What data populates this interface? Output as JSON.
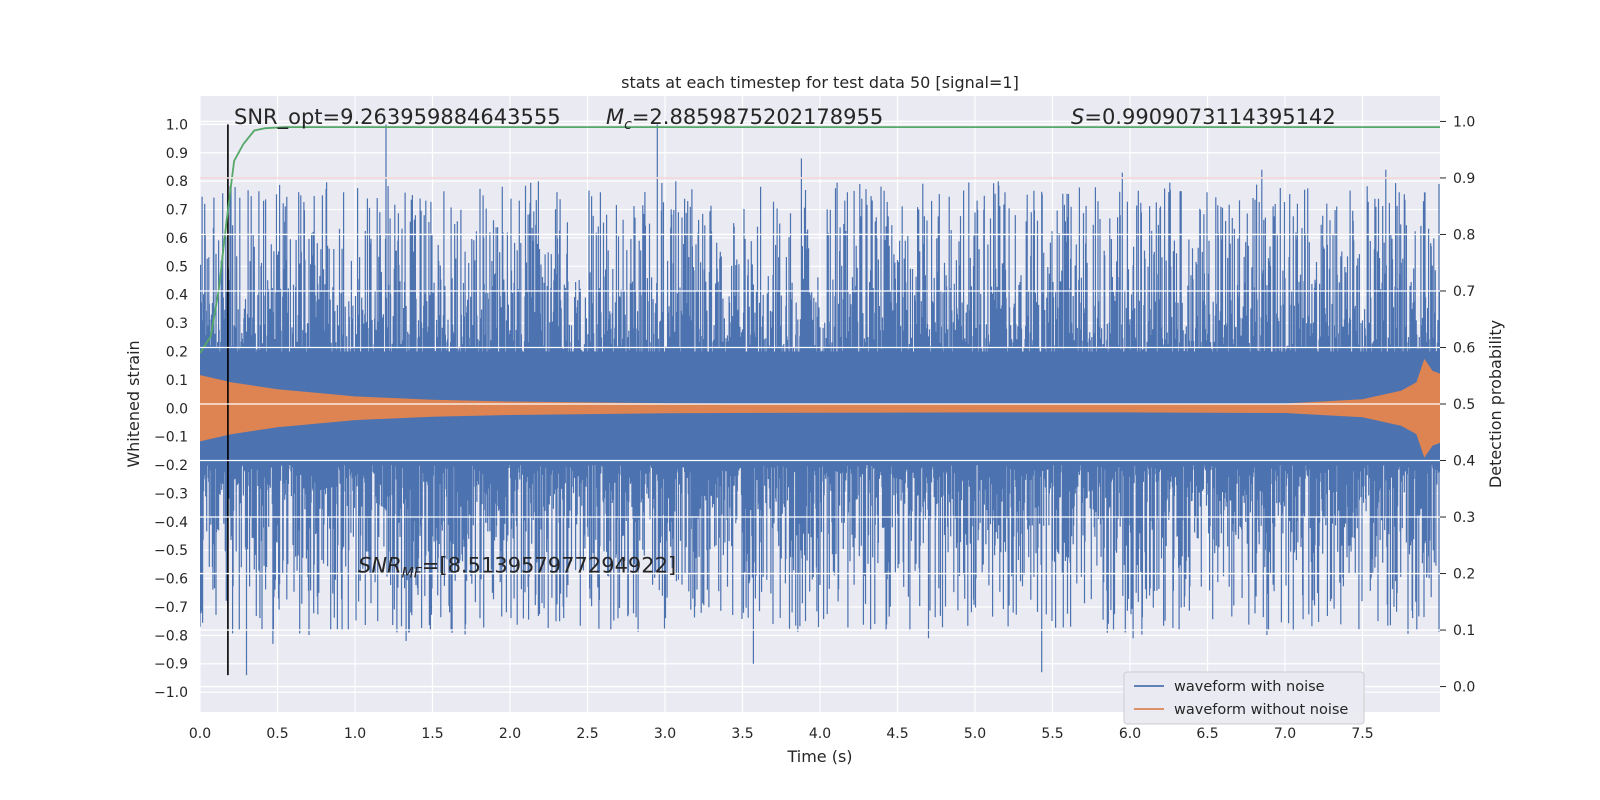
{
  "chart_data": {
    "type": "line",
    "title": "stats at each timestep for test data 50 [signal=1]",
    "xlabel": "Time (s)",
    "ylabel": "Whitened strain",
    "ylabel_right": "Detection probability",
    "xlim": [
      0.0,
      8.0
    ],
    "ylim": [
      -1.07,
      1.1
    ],
    "ylim_right": [
      -0.045,
      1.045
    ],
    "x_ticks": [
      "0.0",
      "0.5",
      "1.0",
      "1.5",
      "2.0",
      "2.5",
      "3.0",
      "3.5",
      "4.0",
      "4.5",
      "5.0",
      "5.5",
      "6.0",
      "6.5",
      "7.0",
      "7.5"
    ],
    "y_ticks": [
      "1.0",
      "0.9",
      "0.8",
      "0.7",
      "0.6",
      "0.5",
      "0.4",
      "0.3",
      "0.2",
      "0.1",
      "0.0",
      "−0.1",
      "−0.2",
      "−0.3",
      "−0.4",
      "−0.5",
      "−0.6",
      "−0.7",
      "−0.8",
      "−0.9",
      "−1.0"
    ],
    "y_ticks_right": [
      "1.0",
      "0.9",
      "0.8",
      "0.7",
      "0.6",
      "0.5",
      "0.4",
      "0.3",
      "0.2",
      "0.1",
      "0.0"
    ],
    "grid": true,
    "legend_position": "lower-right",
    "series": [
      {
        "name": "waveform with noise",
        "color": "#4c72b0",
        "axis": "left",
        "description_values": "dense noise envelope",
        "peaks_upper": [
          [
            0.03,
            0.72
          ],
          [
            0.2,
            0.78
          ],
          [
            0.65,
            0.75
          ],
          [
            1.2,
            1.0
          ],
          [
            1.95,
            0.78
          ],
          [
            2.95,
            1.0
          ],
          [
            3.88,
            0.88
          ],
          [
            5.95,
            0.83
          ],
          [
            6.85,
            0.84
          ],
          [
            7.65,
            0.84
          ],
          [
            7.9,
            0.76
          ]
        ],
        "peaks_lower": [
          [
            0.0,
            -0.77
          ],
          [
            0.3,
            -0.94
          ],
          [
            0.47,
            -0.83
          ],
          [
            1.33,
            -0.82
          ],
          [
            3.57,
            -0.9
          ],
          [
            4.7,
            -0.81
          ],
          [
            5.43,
            -0.93
          ],
          [
            6.02,
            -0.81
          ],
          [
            7.85,
            -0.78
          ]
        ]
      },
      {
        "name": "waveform without noise",
        "color": "#dd8452",
        "axis": "left",
        "envelope": [
          [
            0.0,
            0.115
          ],
          [
            0.2,
            0.09
          ],
          [
            0.5,
            0.065
          ],
          [
            1.0,
            0.04
          ],
          [
            1.5,
            0.028
          ],
          [
            2.0,
            0.022
          ],
          [
            3.0,
            0.016
          ],
          [
            4.0,
            0.014
          ],
          [
            5.0,
            0.013
          ],
          [
            6.0,
            0.013
          ],
          [
            7.0,
            0.015
          ],
          [
            7.5,
            0.03
          ],
          [
            7.75,
            0.06
          ],
          [
            7.85,
            0.09
          ],
          [
            7.9,
            0.17
          ],
          [
            7.95,
            0.13
          ],
          [
            8.0,
            0.12
          ]
        ]
      },
      {
        "name": "",
        "color": "#55a868",
        "axis": "right",
        "points": [
          [
            0.0,
            0.59
          ],
          [
            0.07,
            0.62
          ],
          [
            0.12,
            0.7
          ],
          [
            0.17,
            0.82
          ],
          [
            0.22,
            0.93
          ],
          [
            0.28,
            0.96
          ],
          [
            0.35,
            0.984
          ],
          [
            0.42,
            0.988
          ],
          [
            0.55,
            0.99
          ],
          [
            1.0,
            0.99
          ],
          [
            8.0,
            0.99
          ]
        ]
      }
    ],
    "reference_lines": [
      {
        "type": "horizontal",
        "y_right": 0.9,
        "color": "#c44e52"
      },
      {
        "type": "vertical",
        "x": 0.18,
        "y_from": -0.94,
        "y_to": 1.0,
        "color": "#000000"
      }
    ],
    "annotations": [
      {
        "text": "SNR_opt=9.263959884643555",
        "x": 0.2,
        "y": 1.03
      },
      {
        "text": "M_c=2.8859875202178955",
        "label_prefix": "M",
        "label_sub": "c",
        "label_rest": "=2.8859875202178955",
        "x": 2.6,
        "y": 1.03
      },
      {
        "text": "S=0.9909073114395142",
        "label_prefix": "S",
        "label_rest": "=0.9909073114395142",
        "x": 5.6,
        "y": 1.03
      },
      {
        "text": "SNR_MF=[8.513957977294922]",
        "label_prefix": "SNR",
        "label_sub": "MF",
        "label_rest": "=[8.513957977294922]",
        "x": 1.0,
        "y": -0.55
      }
    ]
  }
}
